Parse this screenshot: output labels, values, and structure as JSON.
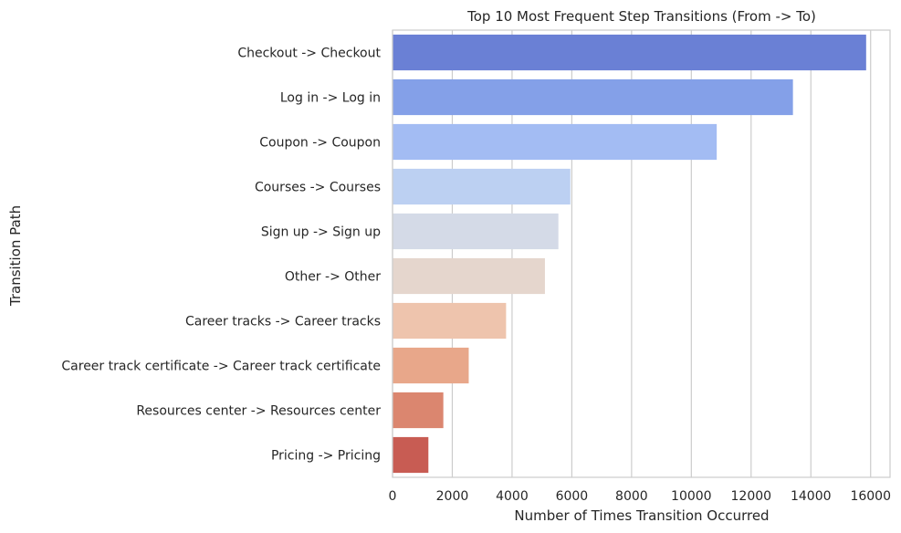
{
  "chart_data": {
    "type": "bar",
    "orientation": "horizontal",
    "title": "Top 10 Most Frequent Step Transitions (From -> To)",
    "xlabel": "Number of Times Transition Occurred",
    "ylabel": "Transition Path",
    "categories": [
      "Checkout -> Checkout",
      "Log in -> Log in",
      "Coupon -> Coupon",
      "Courses -> Courses",
      "Sign up -> Sign up",
      "Other -> Other",
      "Career tracks -> Career tracks",
      "Career track certificate -> Career track certificate",
      "Resources center -> Resources center",
      "Pricing -> Pricing"
    ],
    "values": [
      15850,
      13400,
      10850,
      5950,
      5550,
      5100,
      3800,
      2550,
      1700,
      1200
    ],
    "colors": [
      "#6a80d5",
      "#84a0e8",
      "#a3bcf3",
      "#bcd0f2",
      "#d4dae7",
      "#e5d6cd",
      "#eec4ad",
      "#e8a78a",
      "#db866f",
      "#c85c53"
    ],
    "xlim": [
      0,
      16650
    ],
    "xticks": [
      0,
      2000,
      4000,
      6000,
      8000,
      10000,
      12000,
      14000,
      16000
    ],
    "grid": true,
    "grid_axis": "x"
  }
}
